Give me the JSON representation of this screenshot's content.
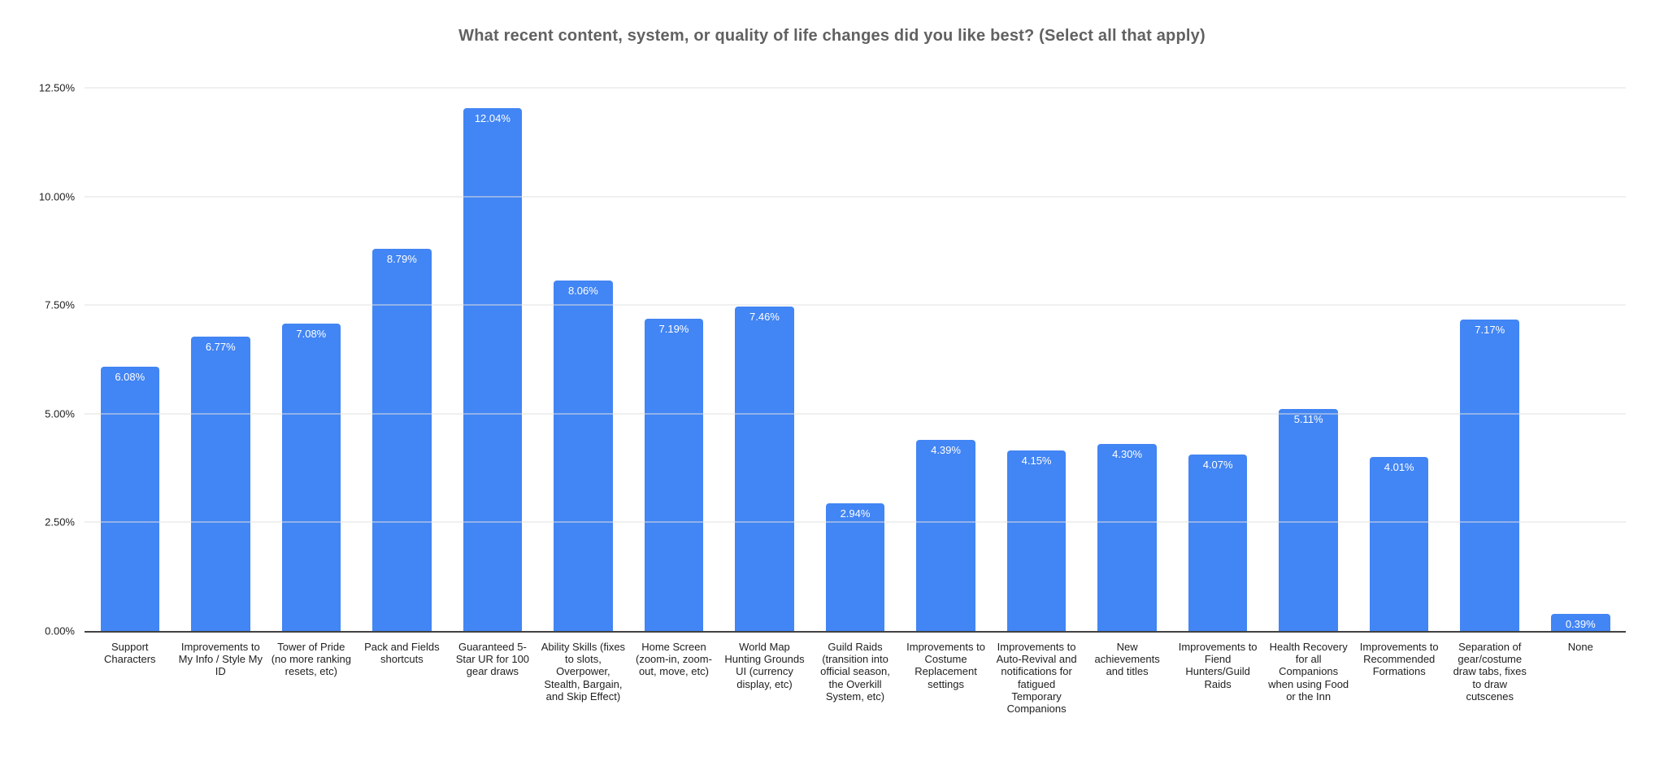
{
  "chart": {
    "bar_color": "#4285f4",
    "grid_color": "#e0e0e0",
    "axis_line_color": "#424242",
    "title_color": "#616161",
    "value_label_color": "#ffffff"
  },
  "chart_data": {
    "type": "bar",
    "title": "What recent content, system, or quality of life changes did you like best? (Select all that apply)",
    "categories": [
      "Support Characters",
      "Improvements to My Info / Style My ID",
      "Tower of Pride (no more ranking resets, etc)",
      "Pack and Fields shortcuts",
      "Guaranteed 5-Star UR for 100 gear draws",
      "Ability Skills (fixes to slots, Overpower, Stealth, Bargain, and Skip Effect)",
      "Home Screen (zoom-in, zoom-out, move, etc)",
      "World Map Hunting Grounds UI (currency display, etc)",
      "Guild Raids (transition into official season, the Overkill System, etc)",
      "Improvements to Costume Replacement settings",
      "Improvements to Auto-Revival and notifications for fatigued Temporary Companions",
      "New achievements and titles",
      "Improvements to Fiend Hunters/Guild Raids",
      "Health Recovery for all Companions when using Food or the Inn",
      "Improvements to Recommended Formations",
      "Separation of gear/costume draw tabs, fixes to draw cutscenes",
      "None"
    ],
    "values": [
      6.08,
      6.77,
      7.08,
      8.79,
      12.04,
      8.06,
      7.19,
      7.46,
      2.94,
      4.39,
      4.15,
      4.3,
      4.07,
      5.11,
      4.01,
      7.17,
      0.39
    ],
    "value_labels": [
      "6.08%",
      "6.77%",
      "7.08%",
      "8.79%",
      "12.04%",
      "8.06%",
      "7.19%",
      "7.46%",
      "2.94%",
      "4.39%",
      "4.15%",
      "4.30%",
      "4.07%",
      "5.11%",
      "4.01%",
      "7.17%",
      "0.39%"
    ],
    "yticks": [
      0,
      2.5,
      5,
      7.5,
      10,
      12.5
    ],
    "ytick_labels": [
      "0.00%",
      "2.50%",
      "5.00%",
      "7.50%",
      "10.00%",
      "12.50%"
    ],
    "ylim": [
      0,
      12.5
    ],
    "xlabel": "",
    "ylabel": "",
    "grid": true,
    "legend": "none"
  }
}
